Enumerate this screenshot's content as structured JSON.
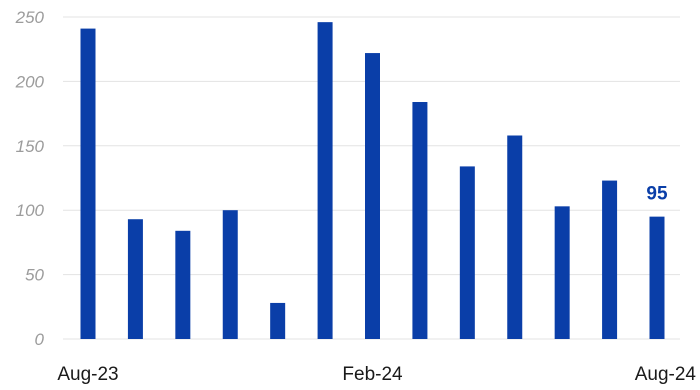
{
  "chart_data": {
    "type": "bar",
    "categories": [
      "Aug-23",
      "Sep-23",
      "Oct-23",
      "Nov-23",
      "Dec-23",
      "Jan-24",
      "Feb-24",
      "Mar-24",
      "Apr-24",
      "May-24",
      "Jun-24",
      "Jul-24",
      "Aug-24"
    ],
    "values": [
      241,
      93,
      84,
      100,
      28,
      246,
      222,
      184,
      134,
      158,
      103,
      123,
      95
    ],
    "x_tick_labels_shown": [
      "Aug-23",
      "Feb-24",
      "Aug-24"
    ],
    "data_labels": [
      {
        "category": "Aug-24",
        "text": "95"
      }
    ],
    "y_ticks": [
      "0",
      "50",
      "100",
      "150",
      "200",
      "250"
    ],
    "ylim": [
      0,
      250
    ],
    "grid": true,
    "title": "",
    "xlabel": "",
    "ylabel": "",
    "colors": {
      "bar": "#0a3ea8",
      "data_label": "#0a3ea8",
      "grid": "#e3e3e3",
      "y_tick": "#9c9c9c",
      "x_tick": "#1a1a1a"
    }
  }
}
